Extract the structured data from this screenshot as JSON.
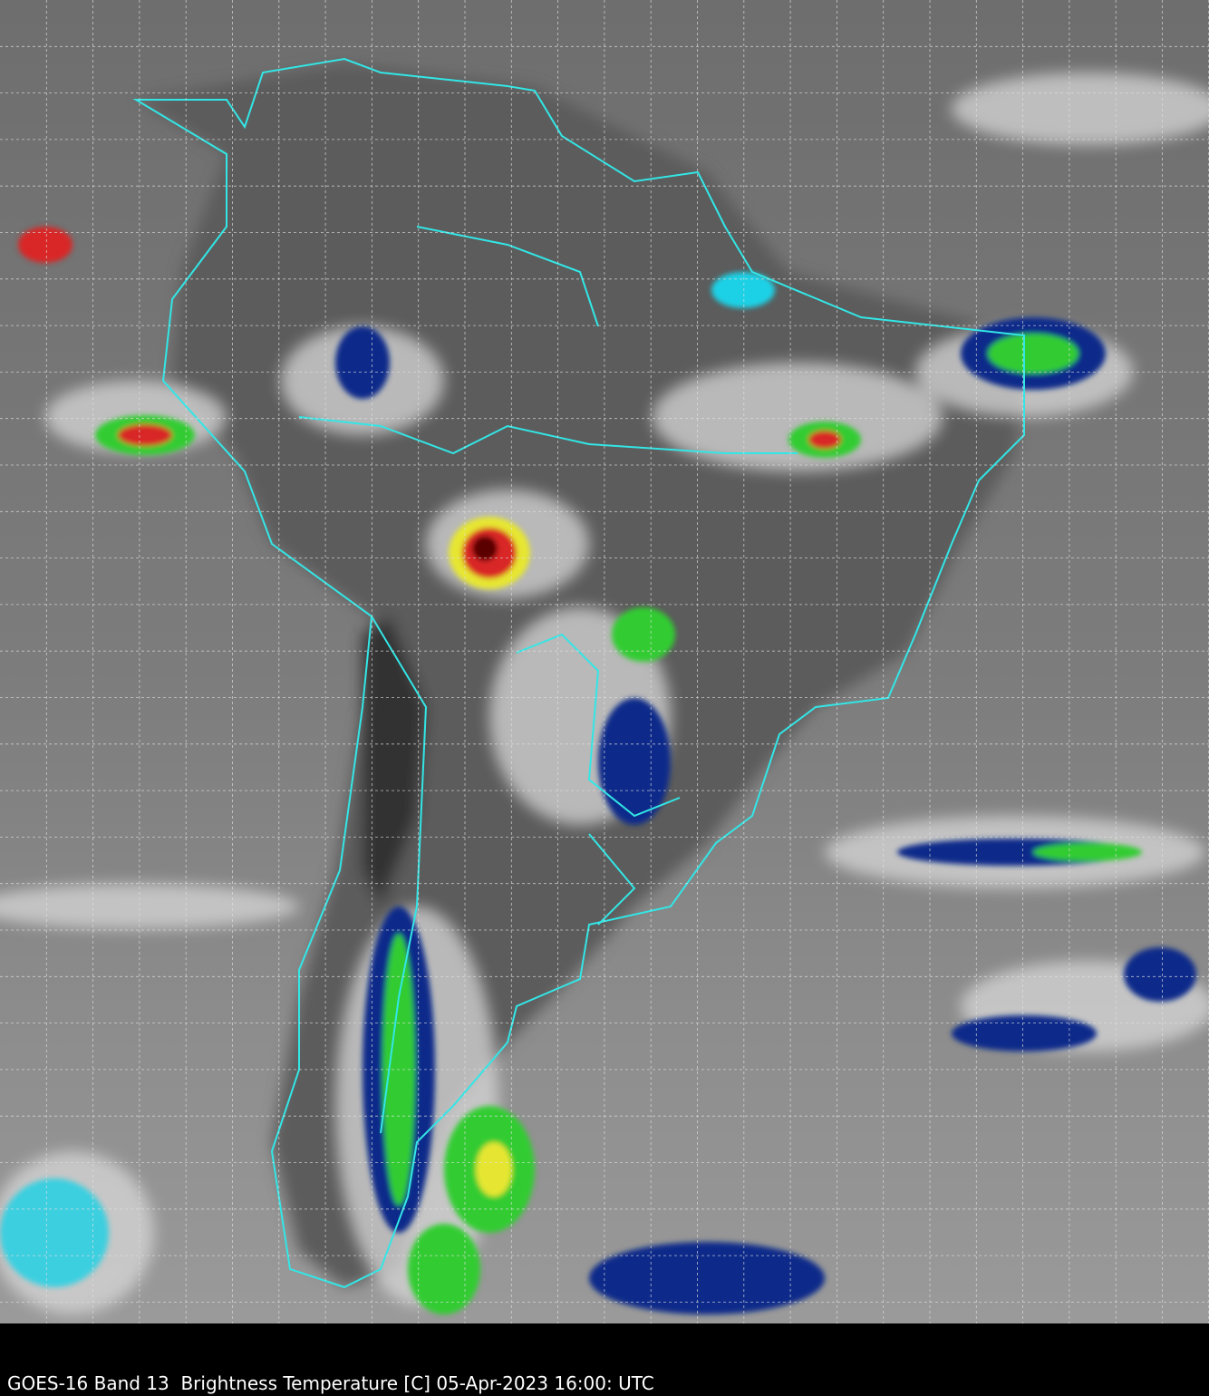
{
  "caption": "GOES-16 Band 13  Brightness Temperature [C] 05-Apr-2023 16:00: UTC",
  "map": {
    "satellite": "GOES-16",
    "band": "13",
    "product": "Brightness Temperature",
    "unit": "C",
    "date": "05-Apr-2023",
    "time": "16:00 UTC",
    "colors": {
      "background_gray": "#7a7a7a",
      "border": "#33e6e6",
      "grid": "#e0e0e0",
      "cold_green": "#33cc33",
      "cold_yellow": "#e6e633",
      "cold_red": "#d92626",
      "cold_darkred": "#5a0000",
      "cold_blue": "#0a2a8a",
      "cold_cyan": "#1ad1e6"
    },
    "gridlines": "dashed"
  }
}
